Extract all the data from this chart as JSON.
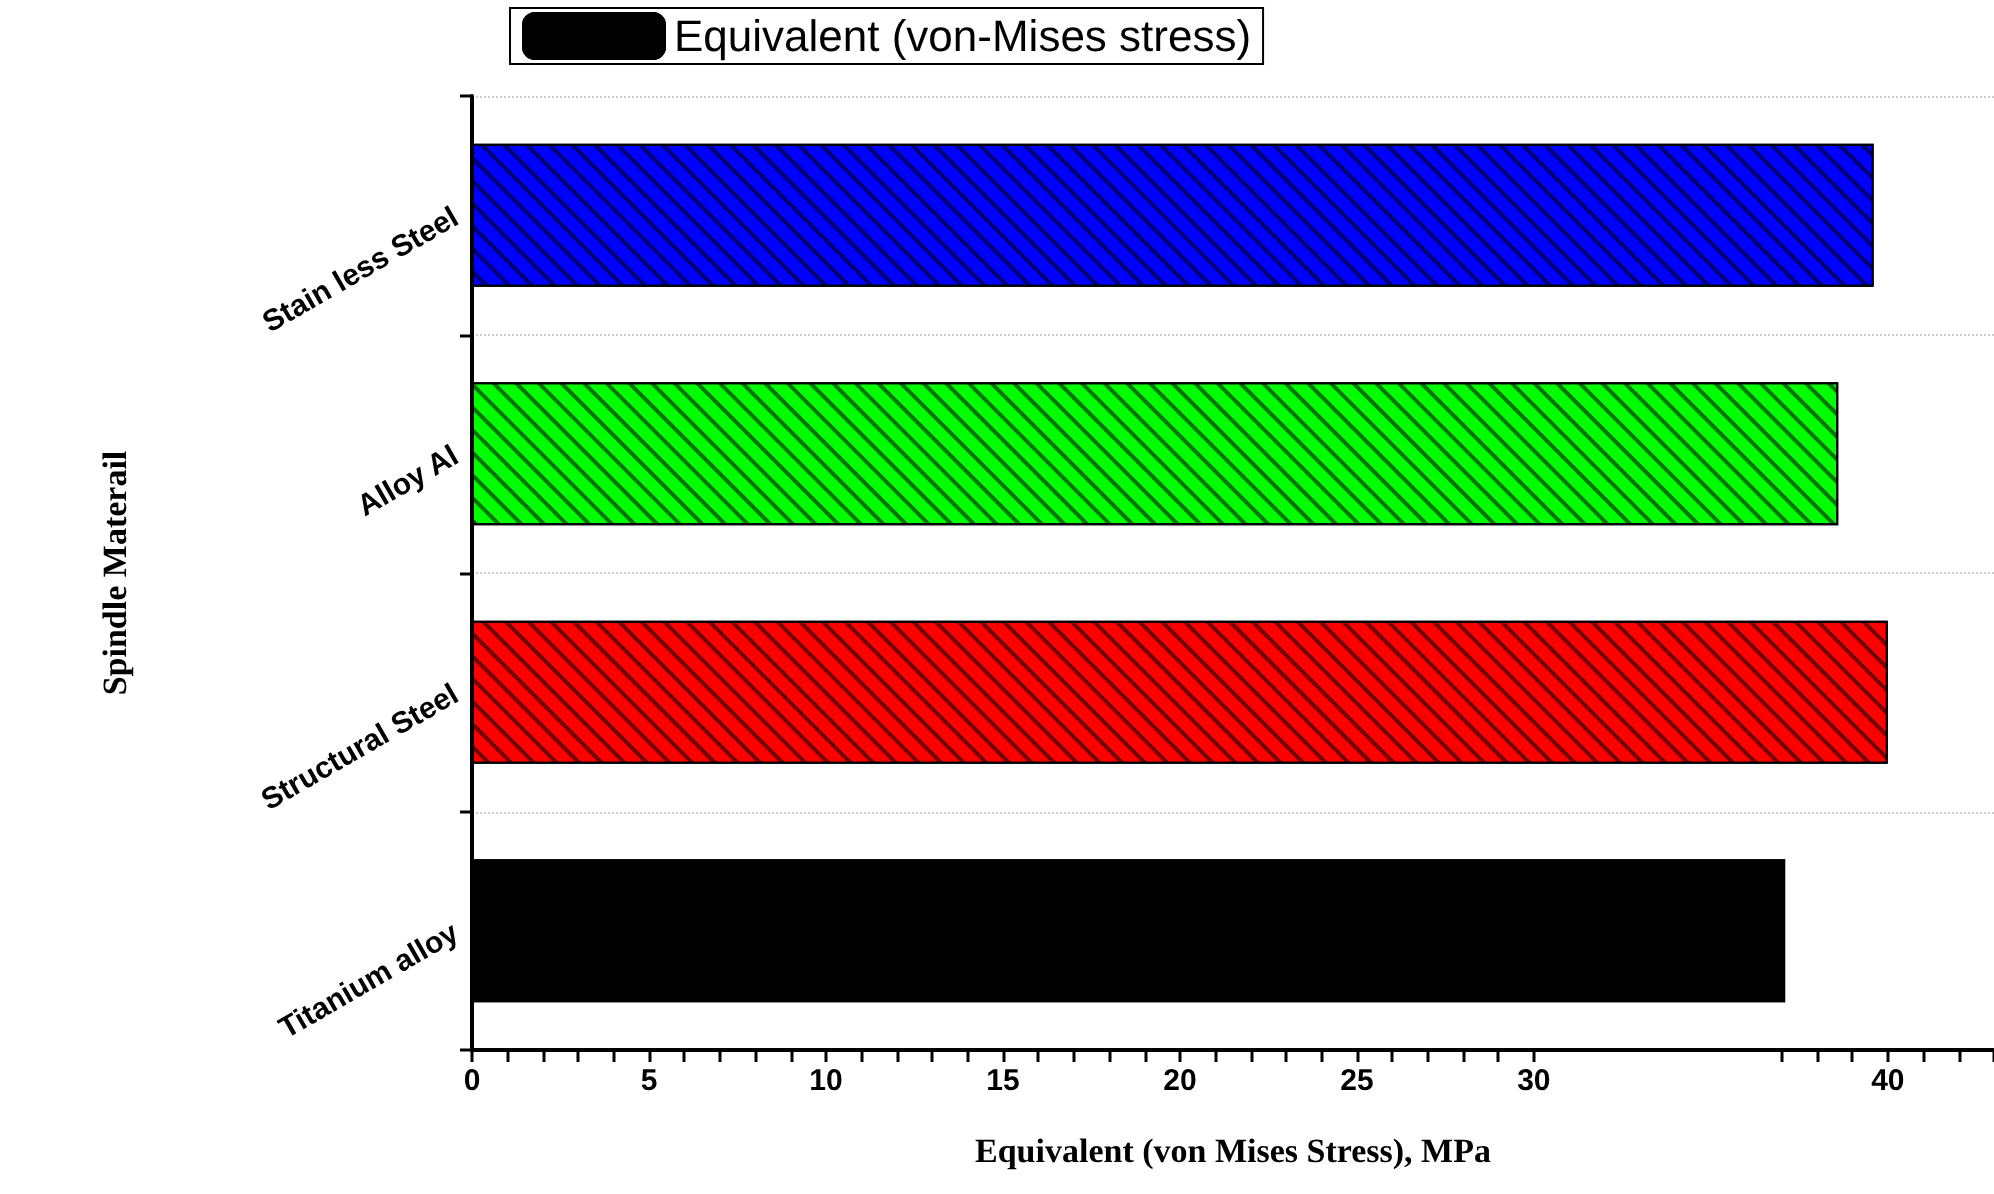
{
  "chart_data": {
    "type": "bar",
    "orientation": "horizontal",
    "categories": [
      "Stain less Steel",
      "Alloy Al",
      "Structural Steel",
      "Titanium alloy"
    ],
    "series": [
      {
        "name": "Equivalent (von-Mises stress)",
        "color": "#000000",
        "colors": [
          "#0000ff",
          "#00ff00",
          "#ff0000",
          "#000000"
        ],
        "values": [
          39.6,
          38.6,
          40.0,
          37.1
        ]
      }
    ],
    "xlabel": "Equivalent (von Mises Stress), MPa",
    "ylabel": "Spindle Materail",
    "xlim": [
      0,
      43
    ],
    "xticks": [
      0,
      {
        "value": 1,
        "label": null
      },
      {
        "value": 2,
        "label": null
      },
      {
        "value": 3,
        "label": null
      },
      {
        "value": 4,
        "label": null
      },
      5,
      {
        "value": 6,
        "label": null
      },
      {
        "value": 7,
        "label": null
      },
      {
        "value": 8,
        "label": null
      },
      {
        "value": 9,
        "label": null
      },
      10,
      {
        "value": 11,
        "label": null
      },
      {
        "value": 12,
        "label": null
      },
      {
        "value": 13,
        "label": null
      },
      {
        "value": 14,
        "label": null
      },
      15,
      {
        "value": 16,
        "label": null
      },
      {
        "value": 17,
        "label": null
      },
      {
        "value": 18,
        "label": null
      },
      {
        "value": 19,
        "label": null
      },
      20,
      {
        "value": 21,
        "label": null
      },
      {
        "value": 22,
        "label": null
      },
      {
        "value": 23,
        "label": null
      },
      {
        "value": 24,
        "label": null
      },
      25,
      {
        "value": 26,
        "label": null
      },
      {
        "value": 27,
        "label": null
      },
      {
        "value": 28,
        "label": null
      },
      {
        "value": 29,
        "label": null
      },
      30,
      {
        "value": 37,
        "label": null
      },
      {
        "value": 38,
        "label": null
      },
      {
        "value": 39,
        "label": null
      },
      40,
      {
        "value": 41,
        "label": null
      },
      {
        "value": 42,
        "label": null
      },
      {
        "value": 43,
        "label": null
      }
    ],
    "grid": "y",
    "legend": "top"
  }
}
